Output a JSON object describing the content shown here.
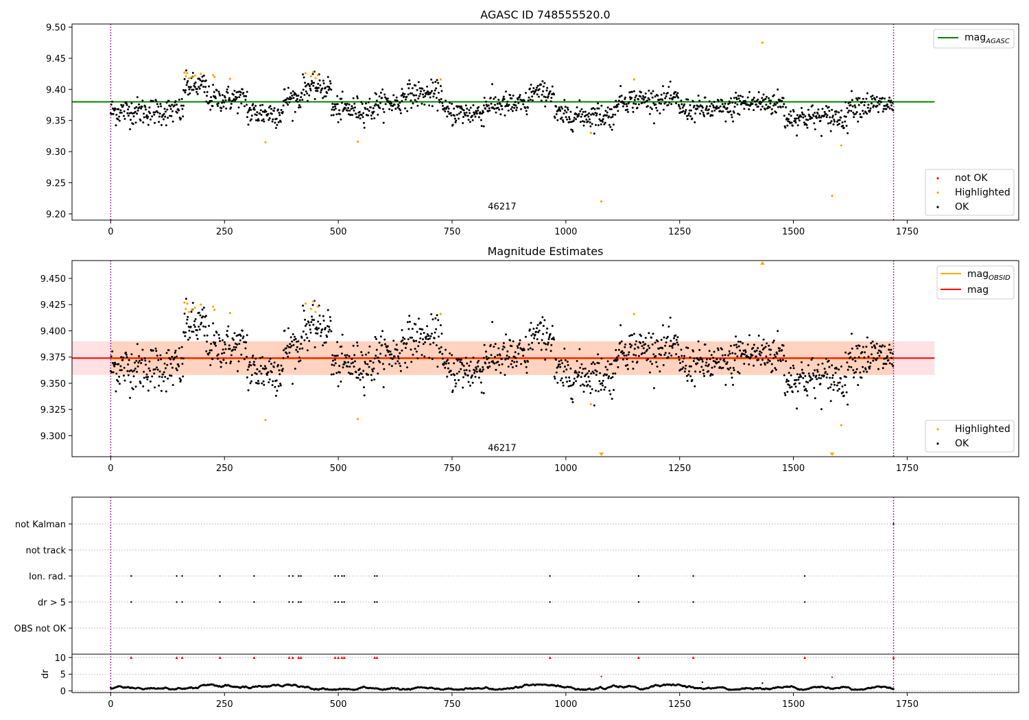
{
  "colors": {
    "ok": "#000000",
    "highlighted": "#ffa500",
    "not_ok": "#ff0000",
    "agasc_line": "#008000",
    "mag_line": "#ff0000",
    "mag_obsid_line": "#ffa500",
    "band_fill": "#ffd0c4",
    "obs_boundary": "#800080"
  },
  "chart_data": [
    {
      "type": "scatter",
      "title": "AGASC ID 748555520.0",
      "xlabel": "",
      "ylabel": "",
      "xlim": [
        -85,
        1995
      ],
      "ylim": [
        9.19,
        9.505
      ],
      "xticks": [
        0,
        250,
        500,
        750,
        1000,
        1250,
        1500,
        1750
      ],
      "xtick_labels": [
        "0",
        "250",
        "500",
        "750",
        "1000",
        "1250",
        "1500",
        "1750"
      ],
      "yticks": [
        9.2,
        9.25,
        9.3,
        9.35,
        9.4,
        9.45,
        9.5
      ],
      "ytick_labels": [
        "9.20",
        "9.25",
        "9.30",
        "9.35",
        "9.40",
        "9.45",
        "9.50"
      ],
      "obs_boundaries": [
        0,
        1720
      ],
      "obsid_label": "46217",
      "obsid_label_position": {
        "x": 860,
        "y": 9.207
      },
      "hlines": [
        {
          "name": "mag_AGASC",
          "y": 9.38,
          "x_range": [
            -85,
            1810
          ]
        }
      ],
      "legend_upper": [
        "mag",
        "AGASC"
      ],
      "legend_lower": [
        "not OK",
        "Highlighted",
        "OK"
      ],
      "series": [
        {
          "name": "Highlighted",
          "x": [
            162,
            165,
            168,
            172,
            178,
            185,
            198,
            225,
            228,
            262,
            340,
            428,
            440,
            445,
            450,
            455,
            543,
            725,
            1055,
            1078,
            1150,
            1432,
            1585,
            1605
          ],
          "values": [
            9.427,
            9.421,
            9.426,
            9.418,
            9.42,
            9.422,
            9.425,
            9.423,
            9.42,
            9.417,
            9.315,
            9.426,
            9.421,
            9.428,
            9.418,
            9.423,
            9.316,
            9.416,
            9.33,
            9.22,
            9.416,
            9.475,
            9.229,
            9.31
          ]
        }
      ],
      "ok_series_segments": [
        {
          "x_range": [
            0,
            160
          ],
          "mean": 9.365,
          "amplitude": 0.013
        },
        {
          "x_range": [
            160,
            210
          ],
          "mean": 9.405,
          "amplitude": 0.012
        },
        {
          "x_range": [
            210,
            300
          ],
          "mean": 9.385,
          "amplitude": 0.012
        },
        {
          "x_range": [
            300,
            380
          ],
          "mean": 9.362,
          "amplitude": 0.013
        },
        {
          "x_range": [
            380,
            420
          ],
          "mean": 9.385,
          "amplitude": 0.012
        },
        {
          "x_range": [
            420,
            485
          ],
          "mean": 9.403,
          "amplitude": 0.011
        },
        {
          "x_range": [
            485,
            580
          ],
          "mean": 9.368,
          "amplitude": 0.012
        },
        {
          "x_range": [
            580,
            640
          ],
          "mean": 9.378,
          "amplitude": 0.011
        },
        {
          "x_range": [
            640,
            730
          ],
          "mean": 9.392,
          "amplitude": 0.012
        },
        {
          "x_range": [
            730,
            820
          ],
          "mean": 9.362,
          "amplitude": 0.012
        },
        {
          "x_range": [
            820,
            920
          ],
          "mean": 9.375,
          "amplitude": 0.012
        },
        {
          "x_range": [
            920,
            975
          ],
          "mean": 9.395,
          "amplitude": 0.01
        },
        {
          "x_range": [
            975,
            1110
          ],
          "mean": 9.358,
          "amplitude": 0.012
        },
        {
          "x_range": [
            1110,
            1250
          ],
          "mean": 9.383,
          "amplitude": 0.011
        },
        {
          "x_range": [
            1250,
            1370
          ],
          "mean": 9.368,
          "amplitude": 0.011
        },
        {
          "x_range": [
            1370,
            1480
          ],
          "mean": 9.378,
          "amplitude": 0.012
        },
        {
          "x_range": [
            1480,
            1620
          ],
          "mean": 9.355,
          "amplitude": 0.012
        },
        {
          "x_range": [
            1620,
            1720
          ],
          "mean": 9.375,
          "amplitude": 0.012
        }
      ]
    },
    {
      "type": "scatter",
      "title": "Magnitude Estimates",
      "xlabel": "",
      "ylabel": "",
      "xlim": [
        -85,
        1995
      ],
      "ylim": [
        9.28,
        9.467
      ],
      "xticks": [
        0,
        250,
        500,
        750,
        1000,
        1250,
        1500,
        1750
      ],
      "xtick_labels": [
        "0",
        "250",
        "500",
        "750",
        "1000",
        "1250",
        "1500",
        "1750"
      ],
      "yticks": [
        9.3,
        9.325,
        9.35,
        9.375,
        9.4,
        9.425,
        9.45
      ],
      "ytick_labels": [
        "9.300",
        "9.325",
        "9.350",
        "9.375",
        "9.400",
        "9.425",
        "9.450"
      ],
      "obs_boundaries": [
        0,
        1720
      ],
      "obsid_label": "46217",
      "obsid_label_position": {
        "x": 860,
        "y": 9.2855
      },
      "hlines": [
        {
          "name": "mag",
          "y": 9.374,
          "x_range": [
            -85,
            1810
          ]
        },
        {
          "name": "mag_OBSID",
          "y": 9.373,
          "x_range": [
            0,
            1720
          ]
        }
      ],
      "bands": [
        {
          "name": "mag range",
          "y_range": [
            9.358,
            9.39
          ],
          "x_range": [
            -85,
            1810
          ],
          "color": "#ffdde0"
        },
        {
          "name": "mag_OBSID range",
          "y_range": [
            9.358,
            9.39
          ],
          "x_range": [
            0,
            1720
          ],
          "color": "#ffd0b8"
        }
      ],
      "legend_upper": [
        [
          "mag",
          "OBSID"
        ],
        [
          "mag"
        ]
      ],
      "legend_lower": [
        "Highlighted",
        "OK"
      ],
      "markers_out_of_range": [
        {
          "x": 1078,
          "direction": "down"
        },
        {
          "x": 1585,
          "direction": "down"
        },
        {
          "x": 1432,
          "direction": "up"
        }
      ]
    },
    {
      "type": "scatter",
      "title": "",
      "xlim": [
        -85,
        1995
      ],
      "xticks": [
        0,
        250,
        500,
        750,
        1000,
        1250,
        1500,
        1750
      ],
      "xtick_labels": [
        "0",
        "250",
        "500",
        "750",
        "1000",
        "1250",
        "1500",
        "1750"
      ],
      "flag_rows": [
        "not Kalman",
        "not track",
        "Ion. rad.",
        "dr > 5",
        "OBS not OK"
      ],
      "flags": {
        "not Kalman": [
          1720
        ],
        "not track": [],
        "Ion. rad.": [
          45,
          145,
          157,
          240,
          315,
          392,
          400,
          413,
          418,
          493,
          500,
          508,
          513,
          580,
          585,
          965,
          1160,
          1280,
          1525
        ],
        "dr > 5": [
          45,
          145,
          157,
          240,
          315,
          392,
          400,
          413,
          418,
          493,
          500,
          508,
          513,
          580,
          585,
          965,
          1160,
          1280,
          1525
        ],
        "OBS not OK": []
      },
      "dr": {
        "ylabel": "dr",
        "ylim": [
          -0.5,
          11
        ],
        "yticks": [
          0,
          5,
          10
        ],
        "ytick_labels": [
          "0",
          "5",
          "10"
        ],
        "clipped_at": 10,
        "clipped_x": [
          45,
          145,
          157,
          240,
          315,
          392,
          400,
          413,
          418,
          493,
          500,
          508,
          513,
          580,
          585,
          965,
          1160,
          1280,
          1525,
          1720
        ],
        "outliers": [
          {
            "x": 1078,
            "y": 4.3
          },
          {
            "x": 1585,
            "y": 4.1
          },
          {
            "x": 1300,
            "y": 2.6
          },
          {
            "x": 1432,
            "y": 2.3
          }
        ],
        "baseline_range": [
          0.3,
          2.0
        ]
      }
    }
  ]
}
